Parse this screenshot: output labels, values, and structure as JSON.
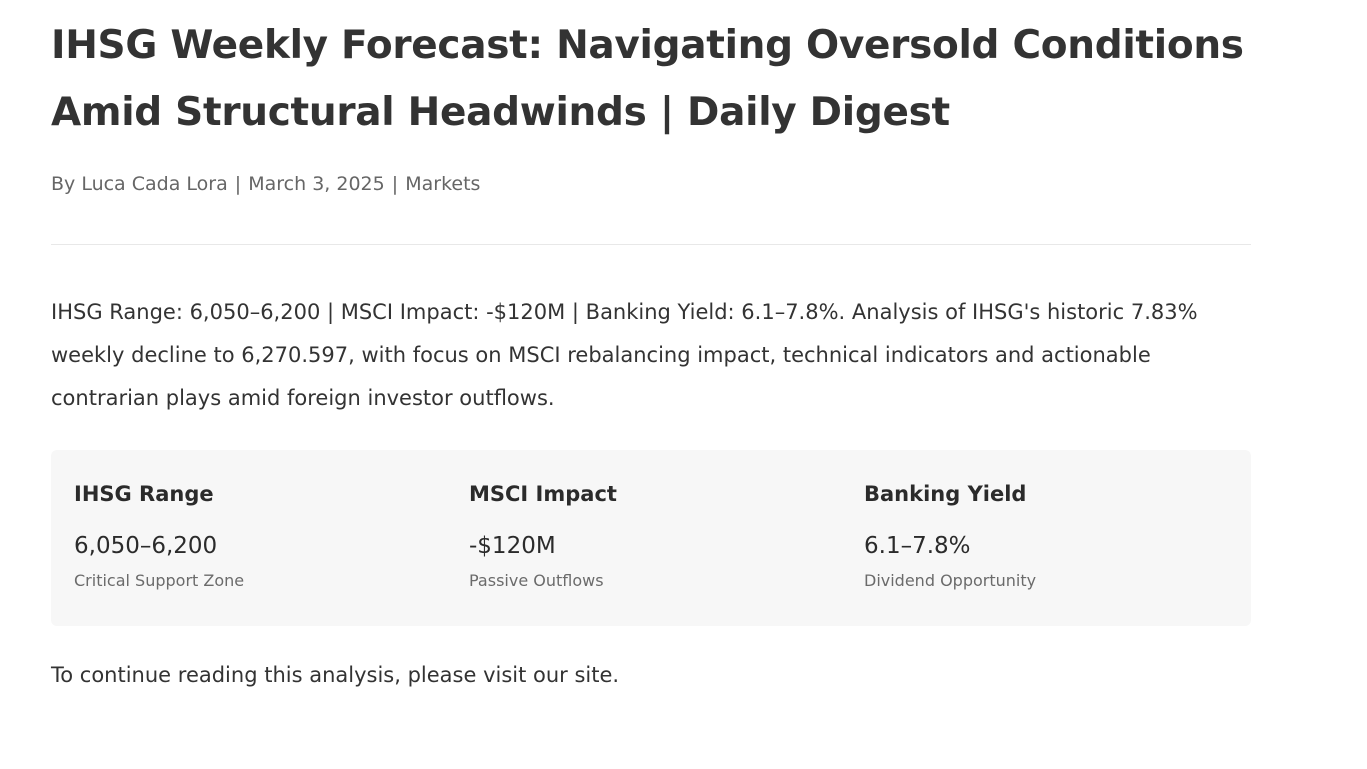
{
  "article": {
    "title": "IHSG Weekly Forecast: Navigating Oversold Conditions Amid Structural Headwinds | Daily Digest",
    "meta": {
      "author": "By Luca Cada Lora",
      "separator": "|",
      "date": "March 3, 2025",
      "category": "Markets"
    },
    "intro": "IHSG Range: 6,050–6,200 | MSCI Impact: -$120M | Banking Yield: 6.1–7.8%. Analysis of IHSG's historic 7.83% weekly decline to 6,270.597, with focus on MSCI rebalancing impact, technical indicators and actionable contrarian plays amid foreign investor outflows.",
    "stats": [
      {
        "label": "IHSG Range",
        "value": "6,050–6,200",
        "note": "Critical Support Zone"
      },
      {
        "label": "MSCI Impact",
        "value": "-$120M",
        "note": "Passive Outflows"
      },
      {
        "label": "Banking Yield",
        "value": "6.1–7.8%",
        "note": "Dividend Opportunity"
      }
    ],
    "cta": "To continue reading this analysis, please visit our site."
  }
}
